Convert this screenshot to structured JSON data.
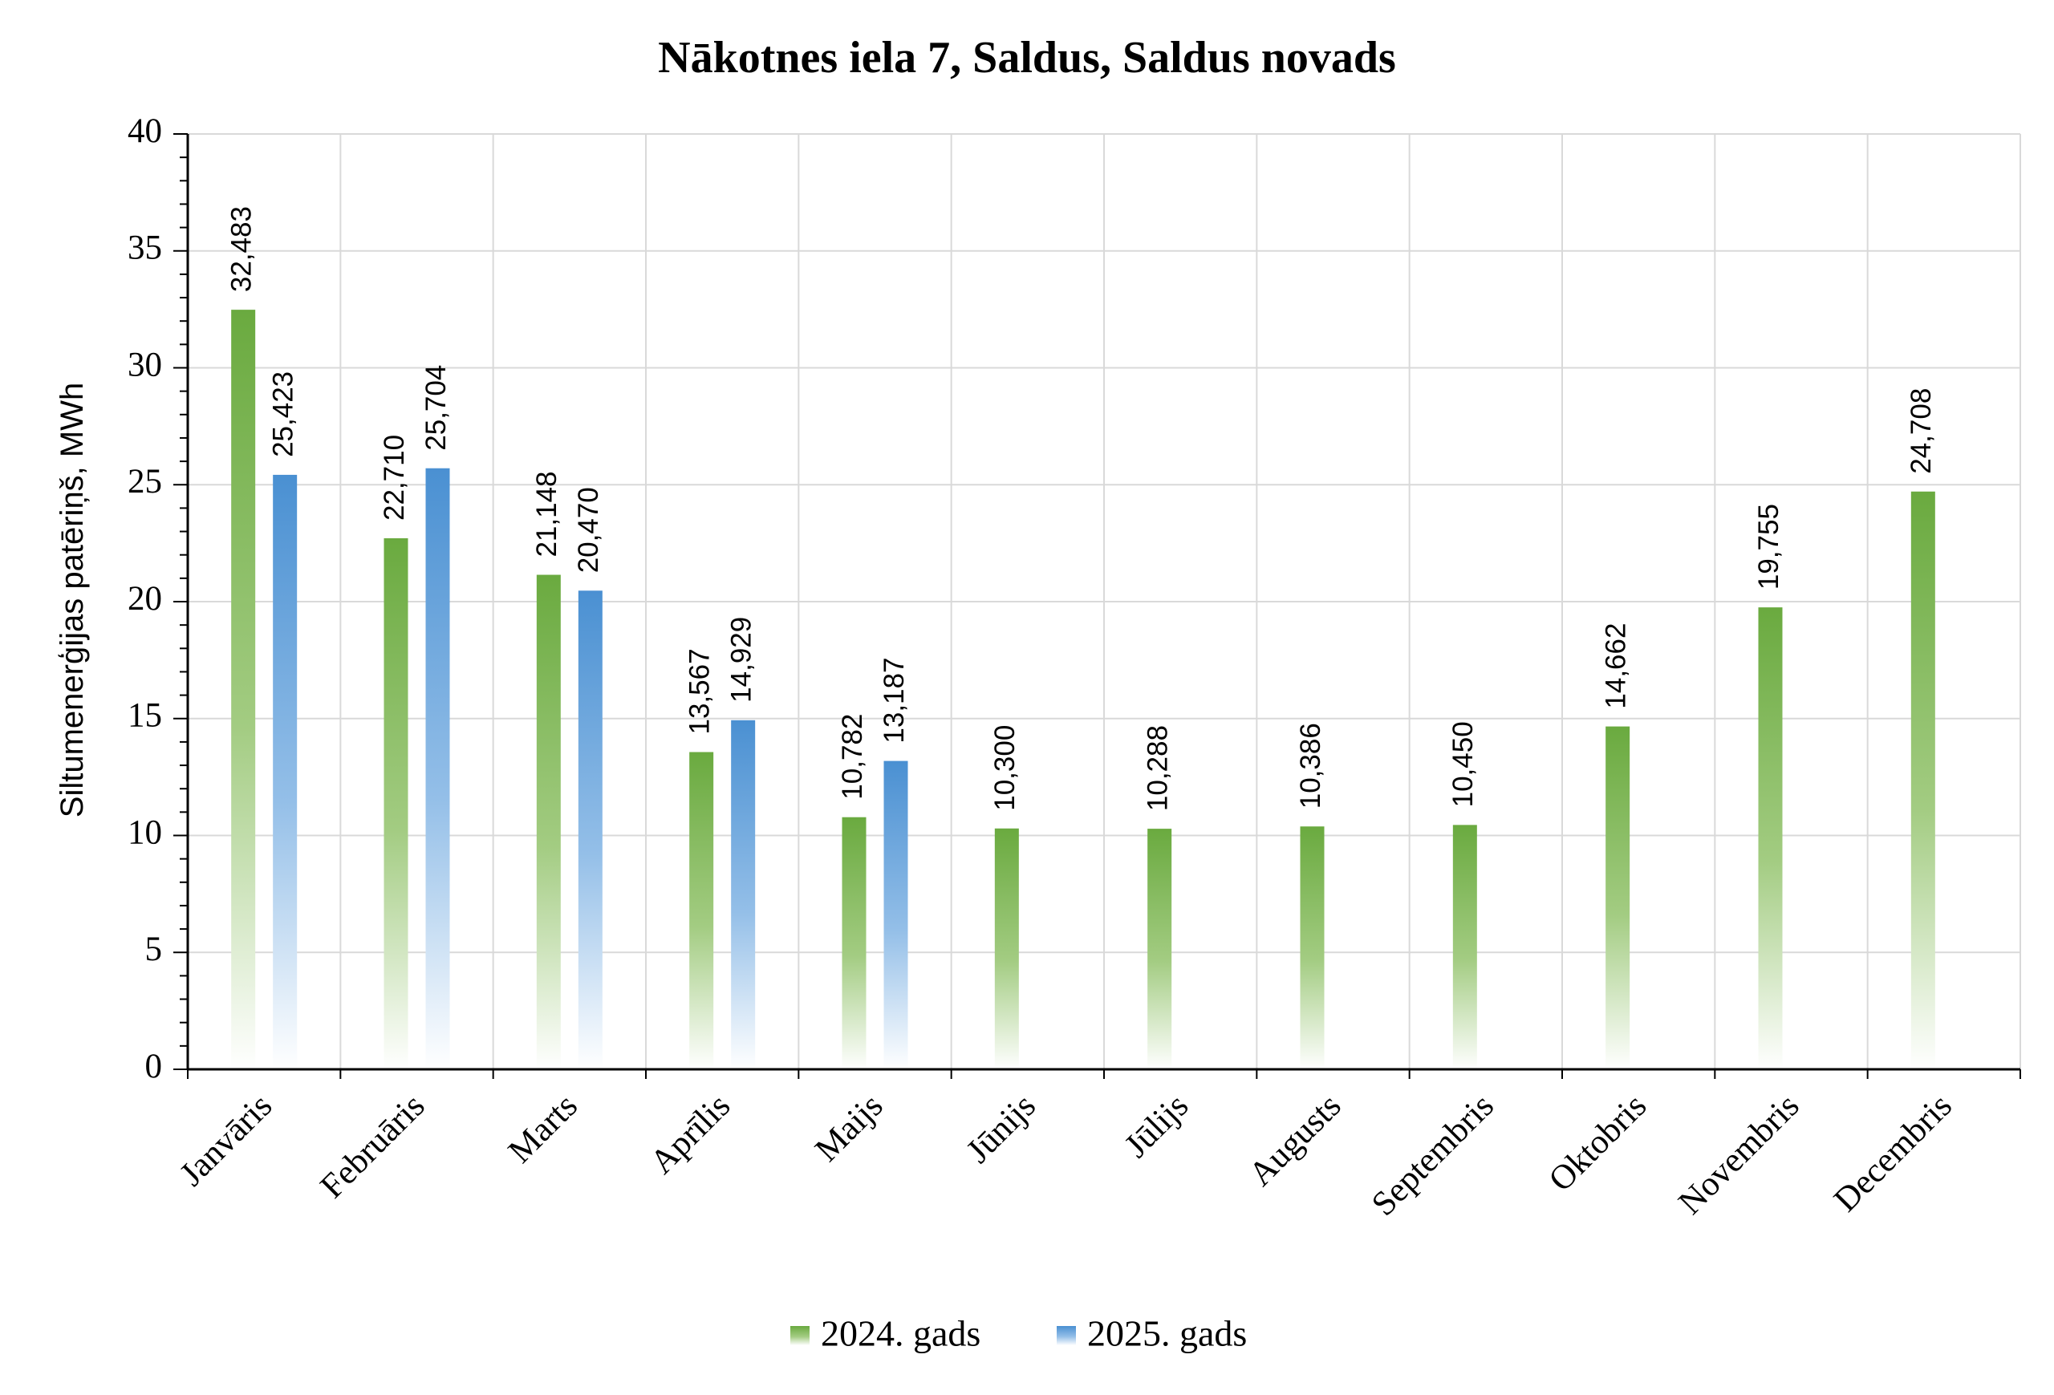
{
  "chart_data": {
    "type": "bar",
    "title": "Nākotnes iela 7, Saldus, Saldus novads",
    "ylabel": "Siltumenerģijas patēriņš, MWh",
    "xlabel": "",
    "ylim": [
      0,
      40
    ],
    "yticks": [
      0,
      5,
      10,
      15,
      20,
      25,
      30,
      35,
      40
    ],
    "grid": true,
    "legend_position": "bottom",
    "categories": [
      "Janvāris",
      "Februāris",
      "Marts",
      "Aprīlis",
      "Maijs",
      "Jūnijs",
      "Jūlijs",
      "Augusts",
      "Septembris",
      "Oktobris",
      "Novembris",
      "Decembris"
    ],
    "series": [
      {
        "name": "2024. gads",
        "color": "#6aaa3f",
        "values": [
          32.483,
          22.71,
          21.148,
          13.567,
          10.782,
          10.3,
          10.288,
          10.386,
          10.45,
          14.662,
          19.755,
          24.708
        ],
        "labels": [
          "32,483",
          "22,710",
          "21,148",
          "13,567",
          "10,782",
          "10,300",
          "10,288",
          "10,386",
          "10,450",
          "14,662",
          "19,755",
          "24,708"
        ]
      },
      {
        "name": "2025. gads",
        "color": "#4a90d2",
        "values": [
          25.423,
          25.704,
          20.47,
          14.929,
          13.187,
          null,
          null,
          null,
          null,
          null,
          null,
          null
        ],
        "labels": [
          "25,423",
          "25,704",
          "20,470",
          "14,929",
          "13,187",
          null,
          null,
          null,
          null,
          null,
          null,
          null
        ]
      }
    ]
  }
}
